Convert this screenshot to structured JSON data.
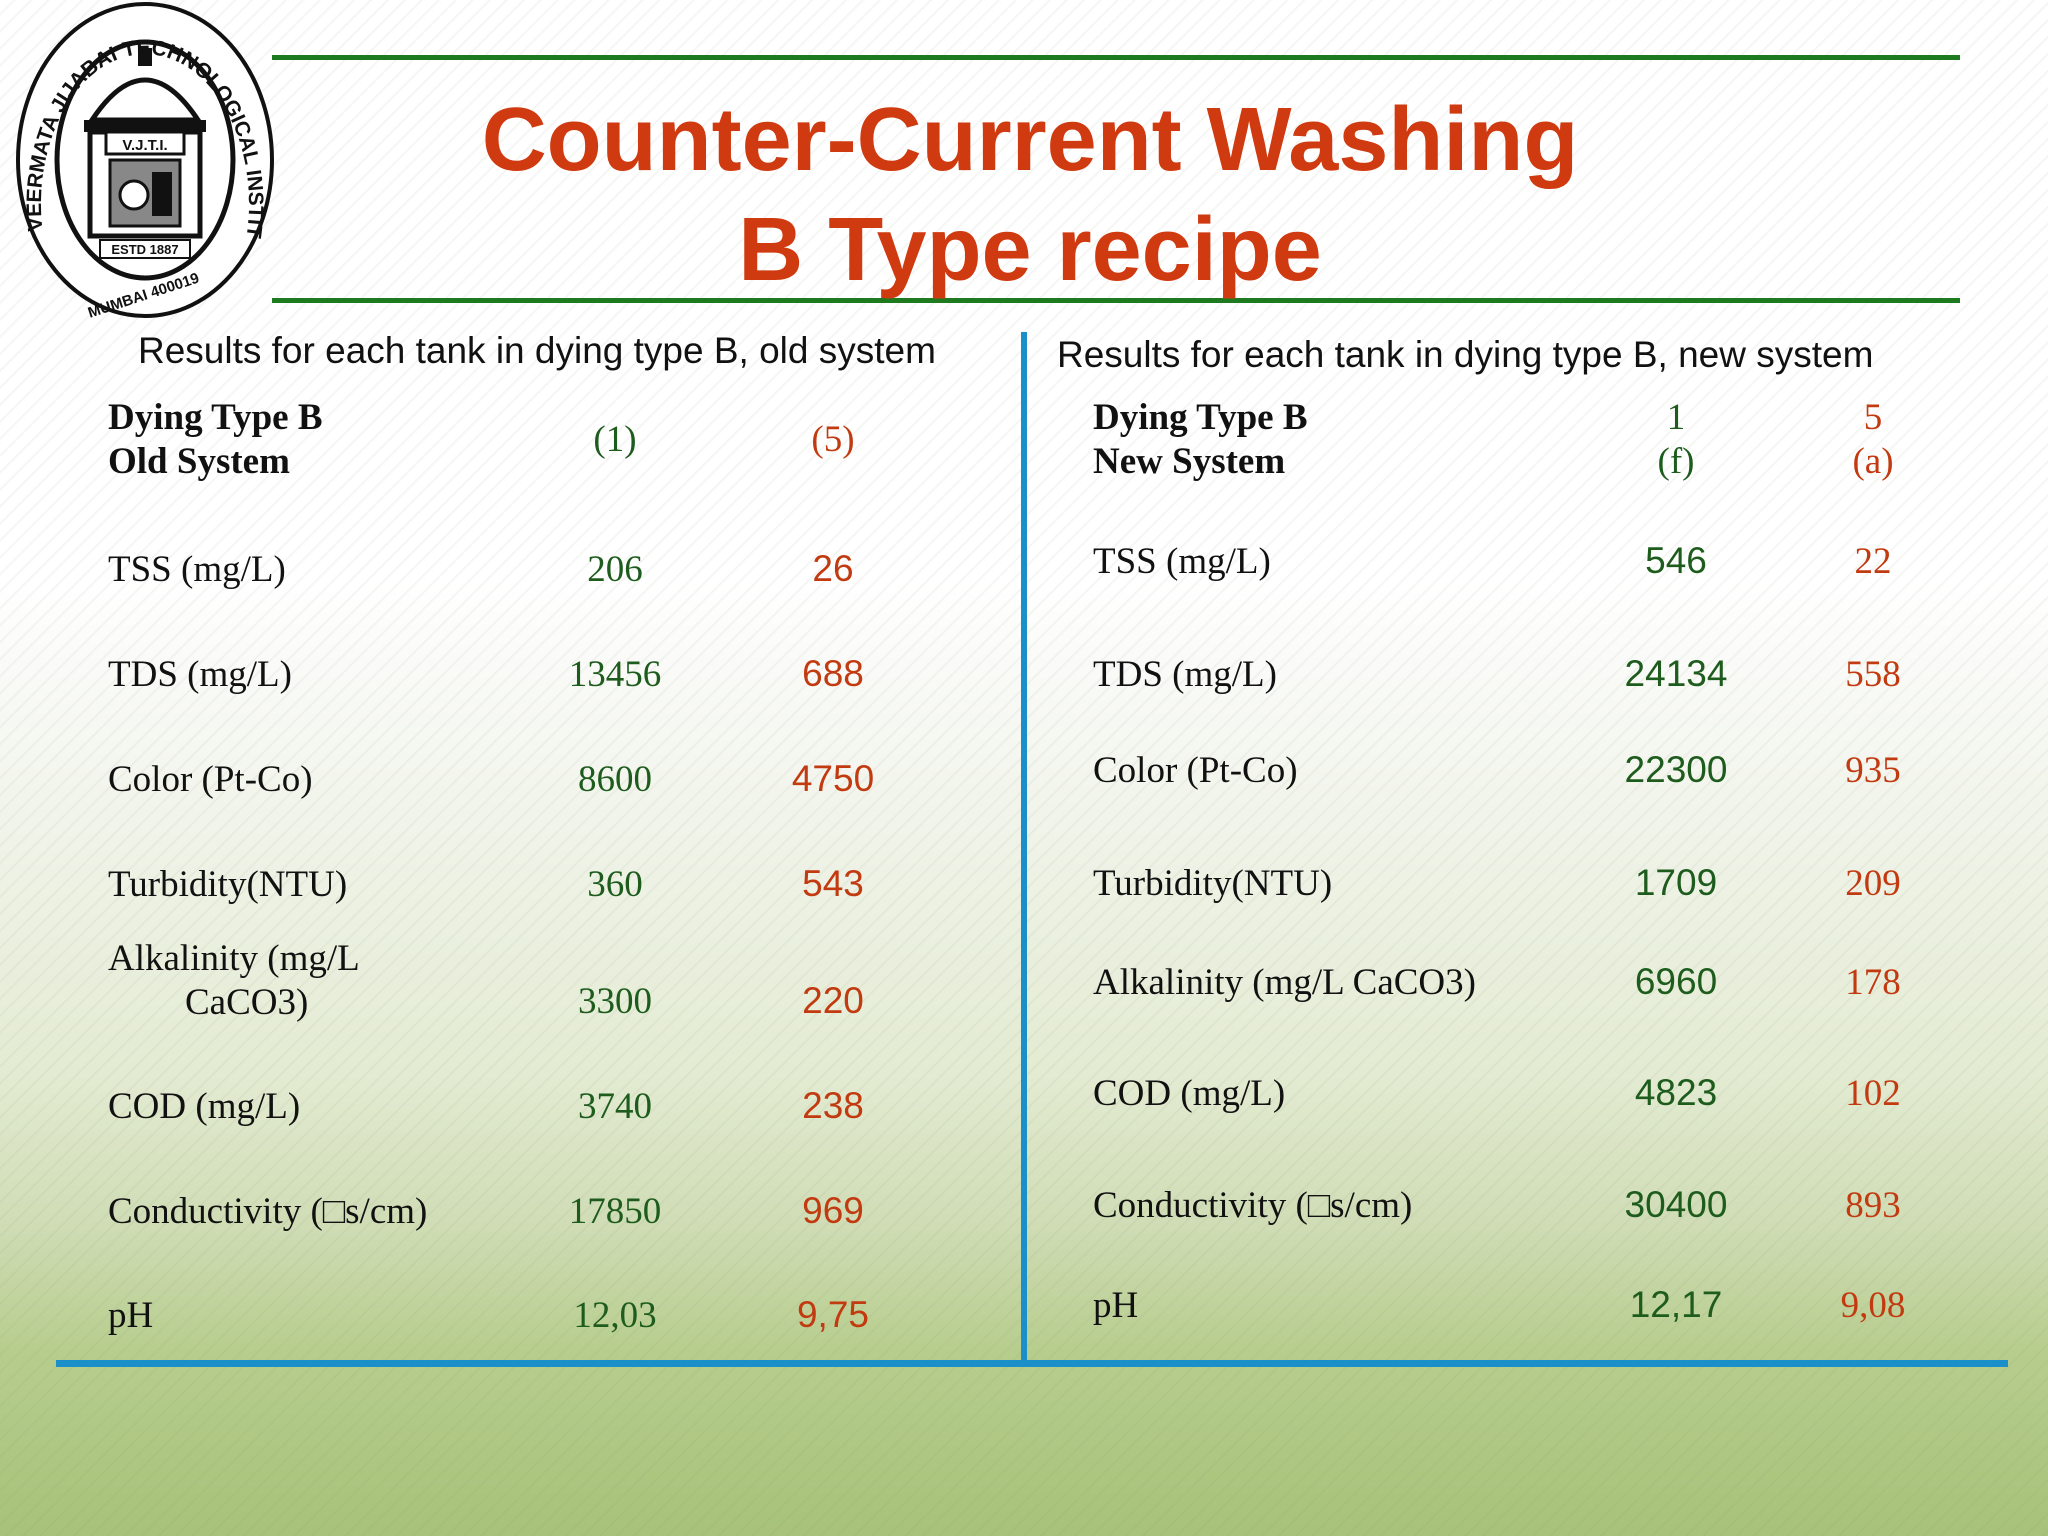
{
  "logo": {
    "ring_text": "VEERMATA JIJABAI TECHNOLOGICAL INSTITUTE",
    "abbr": "V.J.T.I.",
    "estd": "ESTD 1887",
    "city": "MUMBAI 400019"
  },
  "title": {
    "line1": "Counter-Current Washing",
    "line2": "B Type recipe"
  },
  "left": {
    "caption": "Results for each tank in dying type B, old system",
    "header_label_1": "Dying Type B",
    "header_label_2": "Old System",
    "col1": "(1)",
    "col2": "(5)",
    "rows": [
      {
        "label": "TSS (mg/L)",
        "v1": "206",
        "v2": "26"
      },
      {
        "label": "TDS (mg/L)",
        "v1": "13456",
        "v2": "688"
      },
      {
        "label": "Color (Pt-Co)",
        "v1": "8600",
        "v2": "4750"
      },
      {
        "label": "Turbidity(NTU)",
        "v1": "360",
        "v2": "543"
      },
      {
        "label": "Alkalinity (mg/L",
        "label2": "CaCO3)",
        "v1": "3300",
        "v2": "220"
      },
      {
        "label": "COD (mg/L)",
        "v1": "3740",
        "v2": "238"
      },
      {
        "label": "Conductivity (□s/cm)",
        "v1": "17850",
        "v2": "969"
      },
      {
        "label": "pH",
        "v1": "12,03",
        "v2": "9,75"
      }
    ]
  },
  "right": {
    "caption": "Results for each tank in dying type B, new system",
    "header_label_1": "Dying Type B",
    "header_label_2": "New System",
    "col1_line1": "1",
    "col1_line2": "(f)",
    "col2_line1": "5",
    "col2_line2": "(a)",
    "rows": [
      {
        "label": "TSS (mg/L)",
        "v1": "546",
        "v2": "22"
      },
      {
        "label": "TDS (mg/L)",
        "v1": "24134",
        "v2": "558"
      },
      {
        "label": "Color (Pt-Co)",
        "v1": "22300",
        "v2": "935"
      },
      {
        "label": "Turbidity(NTU)",
        "v1": "1709",
        "v2": "209"
      },
      {
        "label": "Alkalinity (mg/L CaCO3)",
        "v1": "6960",
        "v2": "178"
      },
      {
        "label": "COD (mg/L)",
        "v1": "4823",
        "v2": "102"
      },
      {
        "label": "Conductivity (□s/cm)",
        "v1": "30400",
        "v2": "893"
      },
      {
        "label": "pH",
        "v1": "12,17",
        "v2": "9,08"
      }
    ]
  }
}
